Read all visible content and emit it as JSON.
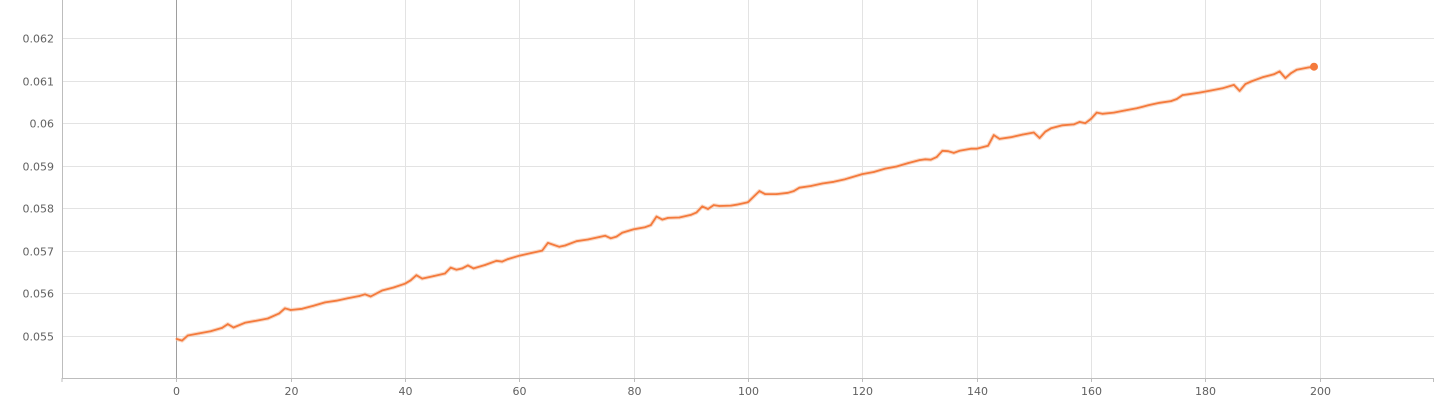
{
  "colors": {
    "line": "#f47a3c",
    "raw": "#f7c1a4",
    "grid": "#e3e3e3"
  },
  "chart_data": {
    "type": "line",
    "title": "",
    "xlabel": "",
    "ylabel": "",
    "xlim": [
      -20,
      220
    ],
    "ylim": [
      0.054,
      0.0629
    ],
    "grid": true,
    "x_ticks": [
      0,
      20,
      40,
      60,
      80,
      100,
      120,
      140,
      160,
      180,
      200
    ],
    "x_tick_labels": [
      "0",
      "20",
      "40",
      "60",
      "80",
      "100",
      "120",
      "140",
      "160",
      "180",
      "200"
    ],
    "y_ticks": [
      0.055,
      0.056,
      0.057,
      0.058,
      0.059,
      0.06,
      0.061,
      0.062
    ],
    "y_tick_labels": [
      "0.055",
      "0.056",
      "0.057",
      "0.058",
      "0.059",
      "0.06",
      "0.061",
      "0.062"
    ],
    "series": [
      {
        "points": [
          [
            0,
            0.05492
          ],
          [
            1,
            0.05488
          ],
          [
            2,
            0.055
          ],
          [
            4,
            0.05505
          ],
          [
            6,
            0.0551
          ],
          [
            8,
            0.05518
          ],
          [
            9,
            0.05527
          ],
          [
            10,
            0.05519
          ],
          [
            12,
            0.0553
          ],
          [
            14,
            0.05535
          ],
          [
            16,
            0.0554
          ],
          [
            18,
            0.05552
          ],
          [
            19,
            0.05564
          ],
          [
            20,
            0.0556
          ],
          [
            22,
            0.05563
          ],
          [
            24,
            0.0557
          ],
          [
            26,
            0.05578
          ],
          [
            28,
            0.05582
          ],
          [
            30,
            0.05588
          ],
          [
            32,
            0.05593
          ],
          [
            33,
            0.05597
          ],
          [
            34,
            0.05592
          ],
          [
            36,
            0.05606
          ],
          [
            38,
            0.05613
          ],
          [
            40,
            0.05622
          ],
          [
            41,
            0.0563
          ],
          [
            42,
            0.05642
          ],
          [
            43,
            0.05634
          ],
          [
            45,
            0.0564
          ],
          [
            47,
            0.05646
          ],
          [
            48,
            0.0566
          ],
          [
            49,
            0.05655
          ],
          [
            50,
            0.05658
          ],
          [
            51,
            0.05665
          ],
          [
            52,
            0.05658
          ],
          [
            54,
            0.05666
          ],
          [
            56,
            0.05676
          ],
          [
            57,
            0.05674
          ],
          [
            58,
            0.0568
          ],
          [
            60,
            0.05688
          ],
          [
            62,
            0.05694
          ],
          [
            64,
            0.057
          ],
          [
            65,
            0.05718
          ],
          [
            67,
            0.05709
          ],
          [
            68,
            0.05712
          ],
          [
            70,
            0.05722
          ],
          [
            72,
            0.05726
          ],
          [
            74,
            0.05732
          ],
          [
            75,
            0.05735
          ],
          [
            76,
            0.05729
          ],
          [
            77,
            0.05733
          ],
          [
            78,
            0.05742
          ],
          [
            80,
            0.0575
          ],
          [
            82,
            0.05755
          ],
          [
            83,
            0.0576
          ],
          [
            84,
            0.0578
          ],
          [
            85,
            0.05773
          ],
          [
            86,
            0.05777
          ],
          [
            88,
            0.05778
          ],
          [
            90,
            0.05784
          ],
          [
            91,
            0.0579
          ],
          [
            92,
            0.05804
          ],
          [
            93,
            0.05798
          ],
          [
            94,
            0.05807
          ],
          [
            95,
            0.05805
          ],
          [
            97,
            0.05806
          ],
          [
            98,
            0.05808
          ],
          [
            100,
            0.05814
          ],
          [
            101,
            0.05827
          ],
          [
            102,
            0.0584
          ],
          [
            103,
            0.05833
          ],
          [
            105,
            0.05833
          ],
          [
            107,
            0.05836
          ],
          [
            108,
            0.0584
          ],
          [
            109,
            0.05848
          ],
          [
            111,
            0.05852
          ],
          [
            113,
            0.05858
          ],
          [
            115,
            0.05862
          ],
          [
            117,
            0.05868
          ],
          [
            118,
            0.05872
          ],
          [
            120,
            0.0588
          ],
          [
            122,
            0.05885
          ],
          [
            124,
            0.05893
          ],
          [
            126,
            0.05898
          ],
          [
            128,
            0.05906
          ],
          [
            130,
            0.05913
          ],
          [
            131,
            0.05915
          ],
          [
            132,
            0.05914
          ],
          [
            133,
            0.0592
          ],
          [
            134,
            0.05935
          ],
          [
            135,
            0.05934
          ],
          [
            136,
            0.0593
          ],
          [
            137,
            0.05935
          ],
          [
            139,
            0.0594
          ],
          [
            140,
            0.0594
          ],
          [
            142,
            0.05947
          ],
          [
            143,
            0.05972
          ],
          [
            144,
            0.05963
          ],
          [
            146,
            0.05967
          ],
          [
            148,
            0.05973
          ],
          [
            150,
            0.05978
          ],
          [
            151,
            0.05965
          ],
          [
            152,
            0.0598
          ],
          [
            153,
            0.05988
          ],
          [
            155,
            0.05995
          ],
          [
            157,
            0.05997
          ],
          [
            158,
            0.06003
          ],
          [
            159,
            0.06
          ],
          [
            160,
            0.0601
          ],
          [
            161,
            0.06025
          ],
          [
            162,
            0.06022
          ],
          [
            164,
            0.06025
          ],
          [
            166,
            0.0603
          ],
          [
            168,
            0.06035
          ],
          [
            170,
            0.06042
          ],
          [
            172,
            0.06048
          ],
          [
            174,
            0.06052
          ],
          [
            175,
            0.06057
          ],
          [
            176,
            0.06066
          ],
          [
            177,
            0.06068
          ],
          [
            179,
            0.06072
          ],
          [
            181,
            0.06077
          ],
          [
            183,
            0.06082
          ],
          [
            185,
            0.0609
          ],
          [
            186,
            0.06076
          ],
          [
            187,
            0.06092
          ],
          [
            188,
            0.06098
          ],
          [
            190,
            0.06108
          ],
          [
            192,
            0.06115
          ],
          [
            193,
            0.06122
          ],
          [
            194,
            0.06106
          ],
          [
            195,
            0.06118
          ],
          [
            196,
            0.06126
          ],
          [
            198,
            0.06131
          ],
          [
            199,
            0.06133
          ]
        ]
      }
    ]
  }
}
